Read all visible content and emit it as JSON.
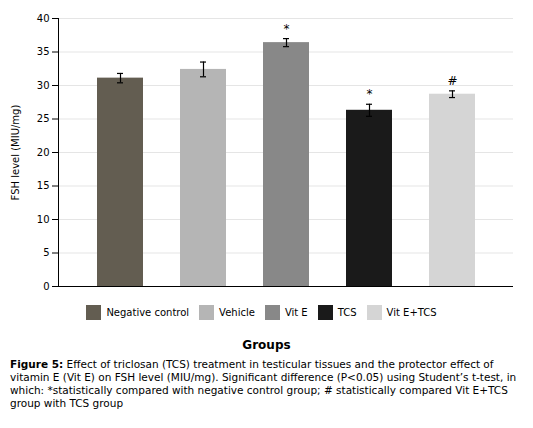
{
  "chart_data": {
    "type": "bar",
    "categories": [
      "Negative control",
      "Vehicle",
      "Vit E",
      "TCS",
      "Vit E+TCS"
    ],
    "values": [
      31.1,
      32.4,
      36.4,
      26.3,
      28.7
    ],
    "errors": [
      0.7,
      1.1,
      0.6,
      0.9,
      0.5
    ],
    "colors": [
      "#635d51",
      "#b5b5b5",
      "#888888",
      "#1a1a1a",
      "#d5d5d5"
    ],
    "ylabel": "FSH level (MIU/mg)",
    "xlabel": "Groups",
    "ylim": [
      0,
      40
    ],
    "yticks": [
      0,
      5,
      10,
      15,
      20,
      25,
      30,
      35,
      40
    ],
    "grid": true,
    "legend": "bottom",
    "tick_labels": "y",
    "annotations": [
      {
        "category": "Vit E",
        "text": "*"
      },
      {
        "category": "TCS",
        "text": "*"
      },
      {
        "category": "Vit E+TCS",
        "text": "#"
      }
    ],
    "caption_label": "Figure 5:",
    "caption": "Effect of triclosan (TCS) treatment in testicular tissues and the protector effect of vitamin E (Vit E) on FSH level (MIU/mg). Significant difference (P<0.05) using Student’s t-test, in which: *statistically compared with negative control group; # statistically compared Vit E+TCS group with TCS group"
  }
}
